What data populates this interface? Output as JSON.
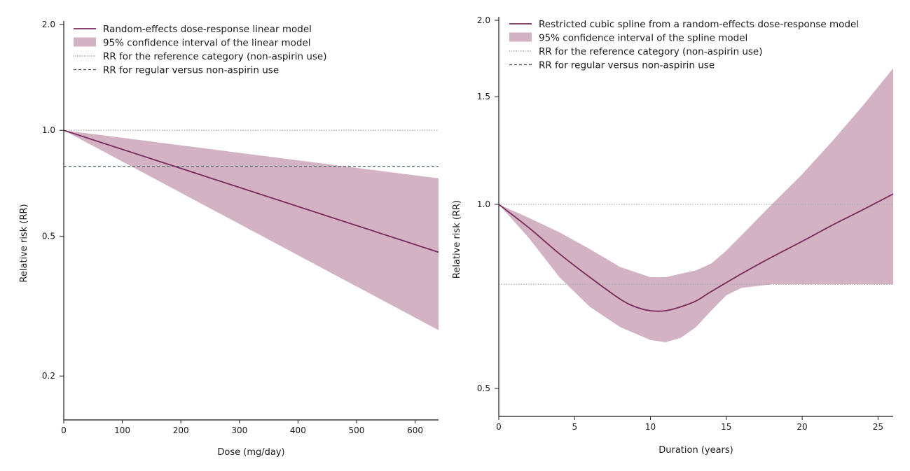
{
  "colors": {
    "line": "#7a2a5c",
    "band": "#d2b2c3",
    "reference": "#aaaaaa",
    "regular": "#4d6b66",
    "axis": "#1a1a1a"
  },
  "chart_data": [
    {
      "type": "line",
      "title": "",
      "xlabel": "Dose (mg/day)",
      "ylabel": "Relative risk (RR)",
      "xlim": [
        0,
        640
      ],
      "ylim": [
        0.15,
        2.0
      ],
      "yscale": "log",
      "xticks": [
        0,
        100,
        200,
        300,
        400,
        500,
        600
      ],
      "yticks": [
        0.2,
        0.5,
        1.0,
        2.0
      ],
      "ytick_labels": [
        "0.2",
        "0.5",
        "1.0",
        "2.0"
      ],
      "grid": false,
      "legend_position": "top-left",
      "legend": [
        "Random-effects dose-response linear model",
        "95% confidence interval of the linear model",
        "RR for the reference category (non-aspirin use)",
        "RR for regular versus non-aspirin use"
      ],
      "series": [
        {
          "name": "Random-effects dose-response linear model",
          "x": [
            0,
            640
          ],
          "y": [
            1.0,
            0.45
          ]
        },
        {
          "name": "95% confidence interval of the linear model",
          "x": [
            0,
            640
          ],
          "lower": [
            1.0,
            0.27
          ],
          "upper": [
            1.0,
            0.73
          ]
        },
        {
          "name": "RR for the reference category (non-aspirin use)",
          "x": [
            0,
            640
          ],
          "y": [
            1.0,
            1.0
          ]
        },
        {
          "name": "RR for regular versus non-aspirin use",
          "x": [
            0,
            640
          ],
          "y": [
            0.79,
            0.79
          ]
        }
      ]
    },
    {
      "type": "line",
      "title": "",
      "xlabel": "Duration (years)",
      "ylabel": "Relative risk (RR)",
      "xlim": [
        0,
        26
      ],
      "ylim": [
        0.45,
        2.0
      ],
      "yscale": "log",
      "xticks": [
        0,
        5,
        10,
        15,
        20,
        25
      ],
      "yticks": [
        0.5,
        1.0,
        1.5,
        2.0
      ],
      "ytick_labels": [
        "0.5",
        "1.0",
        "1.5",
        "2.0"
      ],
      "grid": false,
      "legend_position": "top-left",
      "legend": [
        "Restricted cubic spline from a random-effects dose-response model",
        "95% confidence interval of the spline model",
        "RR for the reference category (non-aspirin use)",
        "RR for regular versus non-aspirin use"
      ],
      "series": [
        {
          "name": "Restricted cubic spline from a random-effects dose-response model",
          "x": [
            0,
            2,
            4,
            6,
            8,
            9,
            10,
            11,
            12,
            13,
            14,
            16,
            18,
            20,
            22,
            24,
            26
          ],
          "y": [
            1.0,
            0.915,
            0.83,
            0.76,
            0.7,
            0.68,
            0.67,
            0.67,
            0.68,
            0.695,
            0.72,
            0.77,
            0.82,
            0.87,
            0.925,
            0.98,
            1.04
          ]
        },
        {
          "name": "95% confidence interval of the spline model",
          "x": [
            0,
            2,
            4,
            6,
            8,
            10,
            11,
            12,
            13,
            14,
            15,
            16,
            18,
            20,
            22,
            24,
            26
          ],
          "lower": [
            1.0,
            0.88,
            0.76,
            0.68,
            0.63,
            0.6,
            0.595,
            0.605,
            0.63,
            0.67,
            0.71,
            0.73,
            0.74,
            0.74,
            0.74,
            0.74,
            0.74
          ],
          "upper": [
            1.0,
            0.95,
            0.9,
            0.845,
            0.79,
            0.76,
            0.76,
            0.77,
            0.78,
            0.8,
            0.84,
            0.89,
            1.0,
            1.12,
            1.27,
            1.45,
            1.67
          ]
        },
        {
          "name": "RR for the reference category (non-aspirin use)",
          "x": [
            0,
            26
          ],
          "y": [
            1.0,
            1.0
          ]
        },
        {
          "name": "RR for regular versus non-aspirin use",
          "x": [
            0,
            26
          ],
          "y": [
            0.74,
            0.74
          ]
        }
      ]
    }
  ]
}
